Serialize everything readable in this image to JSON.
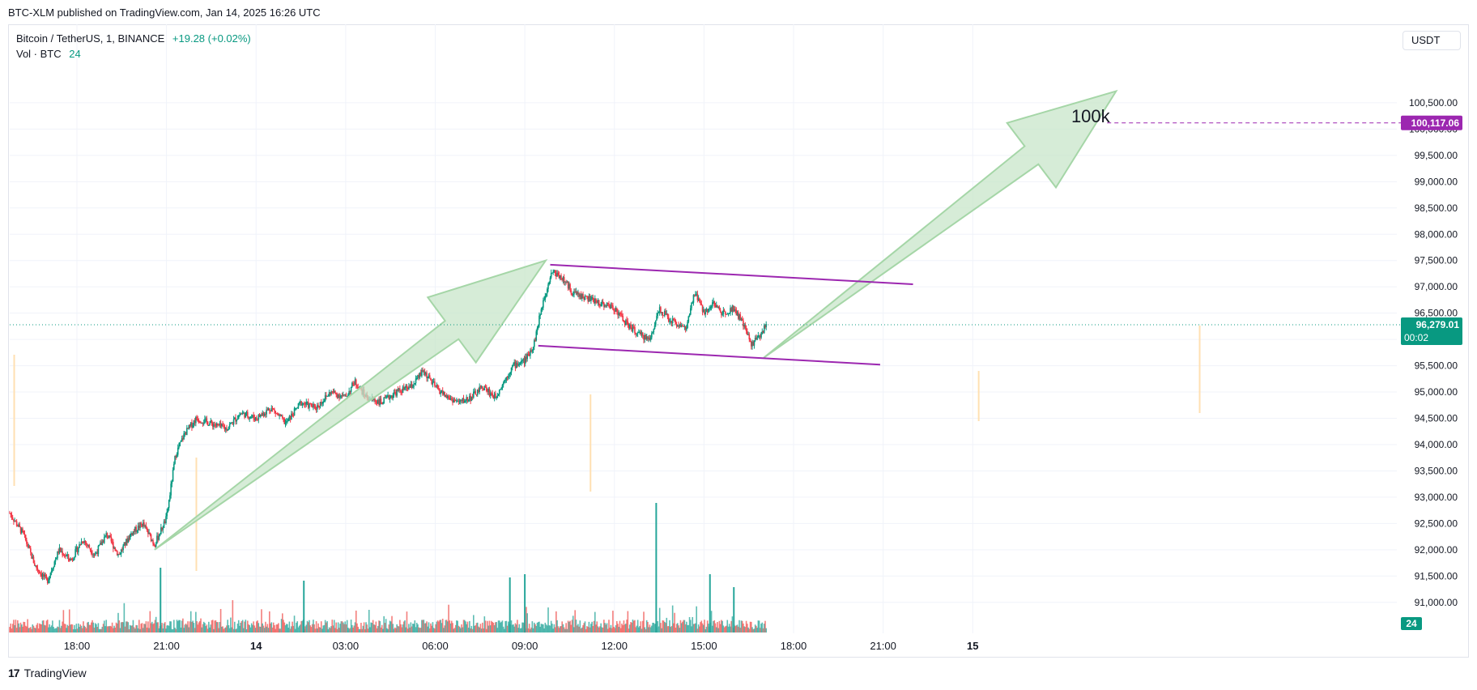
{
  "header": {
    "published": "BTC-XLM published on TradingView.com, Jan 14, 2025 16:26 UTC"
  },
  "legend": {
    "symbol": "Bitcoin / TetherUS, 1, BINANCE",
    "change": "+19.28 (+0.02%)",
    "volume_label": "Vol · BTC",
    "volume_value": "24"
  },
  "currency": "USDT",
  "brand": {
    "logo_text": "17",
    "name": "TradingView"
  },
  "annotation_text": "100k",
  "colors": {
    "up": "#089981",
    "down": "#f23645",
    "channel": "#9c27b0",
    "arrow_fill": "#c8e6c9",
    "arrow_stroke": "#a5d6a7",
    "target": "#9c27b0",
    "last_price": "#089981",
    "grid": "#f0f3fa"
  },
  "chart_data": {
    "type": "candlestick",
    "y_axis": {
      "min": 90750,
      "max": 101500,
      "ticks": [
        "100,500.00",
        "100,000.00",
        "99,500.00",
        "99,000.00",
        "98,500.00",
        "98,000.00",
        "97,500.00",
        "97,000.00",
        "96,500.00",
        "96,000.00",
        "95,500.00",
        "95,000.00",
        "94,500.00",
        "94,000.00",
        "93,500.00",
        "93,000.00",
        "92,500.00",
        "92,000.00",
        "91,500.00",
        "91,000.00"
      ],
      "tick_values": [
        100500,
        100000,
        99500,
        99000,
        98500,
        98000,
        97500,
        97000,
        96500,
        96000,
        95500,
        95000,
        94500,
        94000,
        93500,
        93000,
        92500,
        92000,
        91500,
        91000
      ]
    },
    "x_axis": {
      "start_hour": 15.75,
      "end_hour": 42,
      "ticks": [
        {
          "label": "18:00",
          "hour": 18
        },
        {
          "label": "21:00",
          "hour": 21
        },
        {
          "label": "14",
          "hour": 24
        },
        {
          "label": "03:00",
          "hour": 27
        },
        {
          "label": "06:00",
          "hour": 30
        },
        {
          "label": "09:00",
          "hour": 33
        },
        {
          "label": "12:00",
          "hour": 36
        },
        {
          "label": "15:00",
          "hour": 39
        },
        {
          "label": "18:00",
          "hour": 42
        },
        {
          "label": "21:00",
          "hour": 45
        },
        {
          "label": "15",
          "hour": 48
        }
      ]
    },
    "last_price": {
      "label": "96,279.01",
      "countdown": "00:02",
      "value": 96279.01
    },
    "target_price": {
      "label": "100,117.06",
      "value": 100117.06
    },
    "volume_badge": "24",
    "price_path": [
      [
        15.75,
        92700
      ],
      [
        16.2,
        92300
      ],
      [
        16.6,
        91700
      ],
      [
        17.0,
        91400
      ],
      [
        17.4,
        92000
      ],
      [
        17.8,
        91800
      ],
      [
        18.2,
        92200
      ],
      [
        18.6,
        91900
      ],
      [
        19.0,
        92300
      ],
      [
        19.4,
        91900
      ],
      [
        19.8,
        92300
      ],
      [
        20.2,
        92500
      ],
      [
        20.6,
        92100
      ],
      [
        21.0,
        92600
      ],
      [
        21.3,
        93800
      ],
      [
        21.6,
        94200
      ],
      [
        22.0,
        94500
      ],
      [
        22.5,
        94400
      ],
      [
        23.0,
        94300
      ],
      [
        23.5,
        94600
      ],
      [
        24.0,
        94500
      ],
      [
        24.5,
        94700
      ],
      [
        25.0,
        94400
      ],
      [
        25.5,
        94800
      ],
      [
        26.0,
        94700
      ],
      [
        26.5,
        95000
      ],
      [
        27.0,
        94900
      ],
      [
        27.3,
        95200
      ],
      [
        27.7,
        94900
      ],
      [
        28.2,
        94800
      ],
      [
        28.7,
        95000
      ],
      [
        29.2,
        95100
      ],
      [
        29.6,
        95400
      ],
      [
        30.0,
        95100
      ],
      [
        30.4,
        94900
      ],
      [
        30.8,
        94800
      ],
      [
        31.2,
        94900
      ],
      [
        31.6,
        95100
      ],
      [
        32.0,
        94900
      ],
      [
        32.3,
        95200
      ],
      [
        32.6,
        95500
      ],
      [
        33.0,
        95600
      ],
      [
        33.3,
        95900
      ],
      [
        33.6,
        96700
      ],
      [
        33.9,
        97300
      ],
      [
        34.2,
        97200
      ],
      [
        34.6,
        96900
      ],
      [
        35.0,
        96800
      ],
      [
        35.5,
        96700
      ],
      [
        36.0,
        96600
      ],
      [
        36.4,
        96300
      ],
      [
        36.8,
        96100
      ],
      [
        37.2,
        96000
      ],
      [
        37.5,
        96600
      ],
      [
        37.8,
        96400
      ],
      [
        38.1,
        96300
      ],
      [
        38.4,
        96200
      ],
      [
        38.7,
        96900
      ],
      [
        39.0,
        96500
      ],
      [
        39.3,
        96700
      ],
      [
        39.6,
        96500
      ],
      [
        40.0,
        96600
      ],
      [
        40.3,
        96300
      ],
      [
        40.6,
        95900
      ],
      [
        40.9,
        96100
      ],
      [
        41.1,
        96280
      ]
    ],
    "volume_spikes": [
      {
        "hour": 20.8,
        "value": 1.0
      },
      {
        "hour": 25.6,
        "value": 0.8
      },
      {
        "hour": 32.5,
        "value": 0.85
      },
      {
        "hour": 33.0,
        "value": 0.9
      },
      {
        "hour": 37.4,
        "value": 2.0
      },
      {
        "hour": 39.2,
        "value": 0.9
      },
      {
        "hour": 40.0,
        "value": 0.7
      }
    ],
    "channel_lines": [
      {
        "from": [
          33.85,
          97420
        ],
        "to": [
          46.0,
          97050
        ]
      },
      {
        "from": [
          33.45,
          95880
        ],
        "to": [
          44.9,
          95520
        ]
      }
    ],
    "arrows": [
      {
        "tail": [
          20.6,
          92000
        ],
        "head": [
          33.7,
          97500
        ]
      },
      {
        "tail": [
          41.0,
          95650
        ],
        "head": [
          52.8,
          100720
        ]
      }
    ],
    "annotation": {
      "text_hour": 51.3,
      "text_value": 100250
    }
  }
}
